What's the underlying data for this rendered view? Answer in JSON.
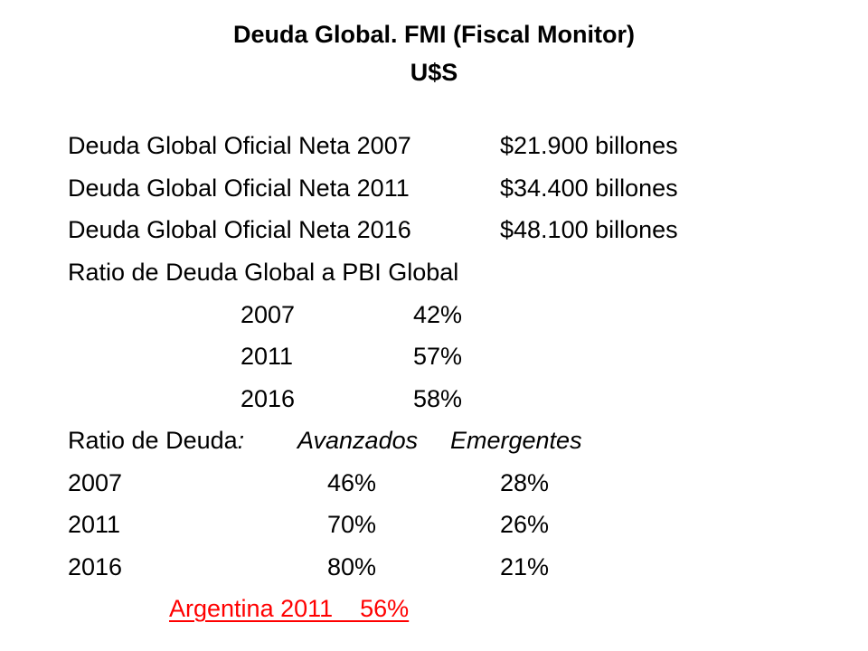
{
  "slide": {
    "title_line1": "Deuda Global. FMI (Fiscal Monitor)",
    "title_line2": "U$S",
    "net_debt": [
      {
        "label": "Deuda Global Oficial Neta 2007",
        "value": "$21.900 billones"
      },
      {
        "label": "Deuda Global Oficial Neta 2011",
        "value": "$34.400 billones"
      },
      {
        "label": "Deuda Global Oficial Neta 2016",
        "value": "$48.100 billones"
      }
    ],
    "gdp_ratio_heading": "Ratio de Deuda Global a PBI Global",
    "gdp_ratio_rows": [
      {
        "year": "2007",
        "value": "42%"
      },
      {
        "year": "2011",
        "value": "57%"
      },
      {
        "year": "2016",
        "value": "58%"
      }
    ],
    "debt_ratio_heading": {
      "label": "Ratio de Deuda",
      "colon": ":",
      "col_advanced": "Avanzados",
      "col_emerging": "Emergentes"
    },
    "debt_ratio_rows": [
      {
        "year": "2007",
        "advanced": "46%",
        "emerging": "28%"
      },
      {
        "year": "2011",
        "advanced": "70%",
        "emerging": "26%"
      },
      {
        "year": "2016",
        "advanced": "80%",
        "emerging": "21%"
      }
    ],
    "argentina_note": "Argentina 2011    56%",
    "colors": {
      "text": "#000000",
      "highlight": "#ff0000",
      "background": "#ffffff"
    }
  }
}
